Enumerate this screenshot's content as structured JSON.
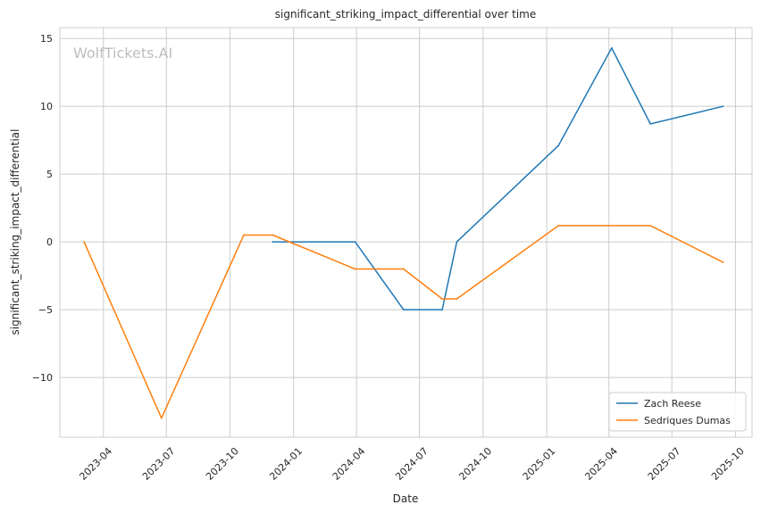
{
  "chart_data": {
    "type": "line",
    "title": "significant_striking_impact_differential over time",
    "xlabel": "Date",
    "ylabel": "significant_striking_impact_differential",
    "watermark": "WolfTickets.AI",
    "xlim": [
      "2023-01-28",
      "2025-10-25"
    ],
    "ylim": [
      -14.4,
      15.8
    ],
    "x_ticks": [
      "2023-04",
      "2023-07",
      "2023-10",
      "2024-01",
      "2024-04",
      "2024-07",
      "2024-10",
      "2025-01",
      "2025-04",
      "2025-07",
      "2025-10"
    ],
    "y_ticks": [
      -10,
      -5,
      0,
      5,
      10,
      15
    ],
    "y_tick_labels": [
      "−10",
      "−5",
      "0",
      "5",
      "10",
      "15"
    ],
    "grid": true,
    "legend_position": "lower-right",
    "series": [
      {
        "name": "Zach Reese",
        "color": "#1f77b4",
        "points": [
          {
            "x": "2023-12-02",
            "y": 0.0
          },
          {
            "x": "2024-03-30",
            "y": 0.0
          },
          {
            "x": "2024-06-08",
            "y": -5.0
          },
          {
            "x": "2024-08-03",
            "y": -5.0
          },
          {
            "x": "2024-08-24",
            "y": 0.0
          },
          {
            "x": "2025-01-18",
            "y": 7.1
          },
          {
            "x": "2025-04-05",
            "y": 14.3
          },
          {
            "x": "2025-05-31",
            "y": 8.7
          },
          {
            "x": "2025-09-13",
            "y": 10.0
          }
        ]
      },
      {
        "name": "Sedriques Dumas",
        "color": "#ff7f0e",
        "points": [
          {
            "x": "2023-03-04",
            "y": 0.0
          },
          {
            "x": "2023-06-24",
            "y": -13.0
          },
          {
            "x": "2023-10-21",
            "y": 0.5
          },
          {
            "x": "2023-12-02",
            "y": 0.5
          },
          {
            "x": "2024-03-30",
            "y": -2.0
          },
          {
            "x": "2024-06-08",
            "y": -2.0
          },
          {
            "x": "2024-08-03",
            "y": -4.2
          },
          {
            "x": "2024-08-24",
            "y": -4.2
          },
          {
            "x": "2025-01-18",
            "y": 1.2
          },
          {
            "x": "2025-05-31",
            "y": 1.2
          },
          {
            "x": "2025-09-13",
            "y": -1.5
          }
        ]
      }
    ]
  }
}
